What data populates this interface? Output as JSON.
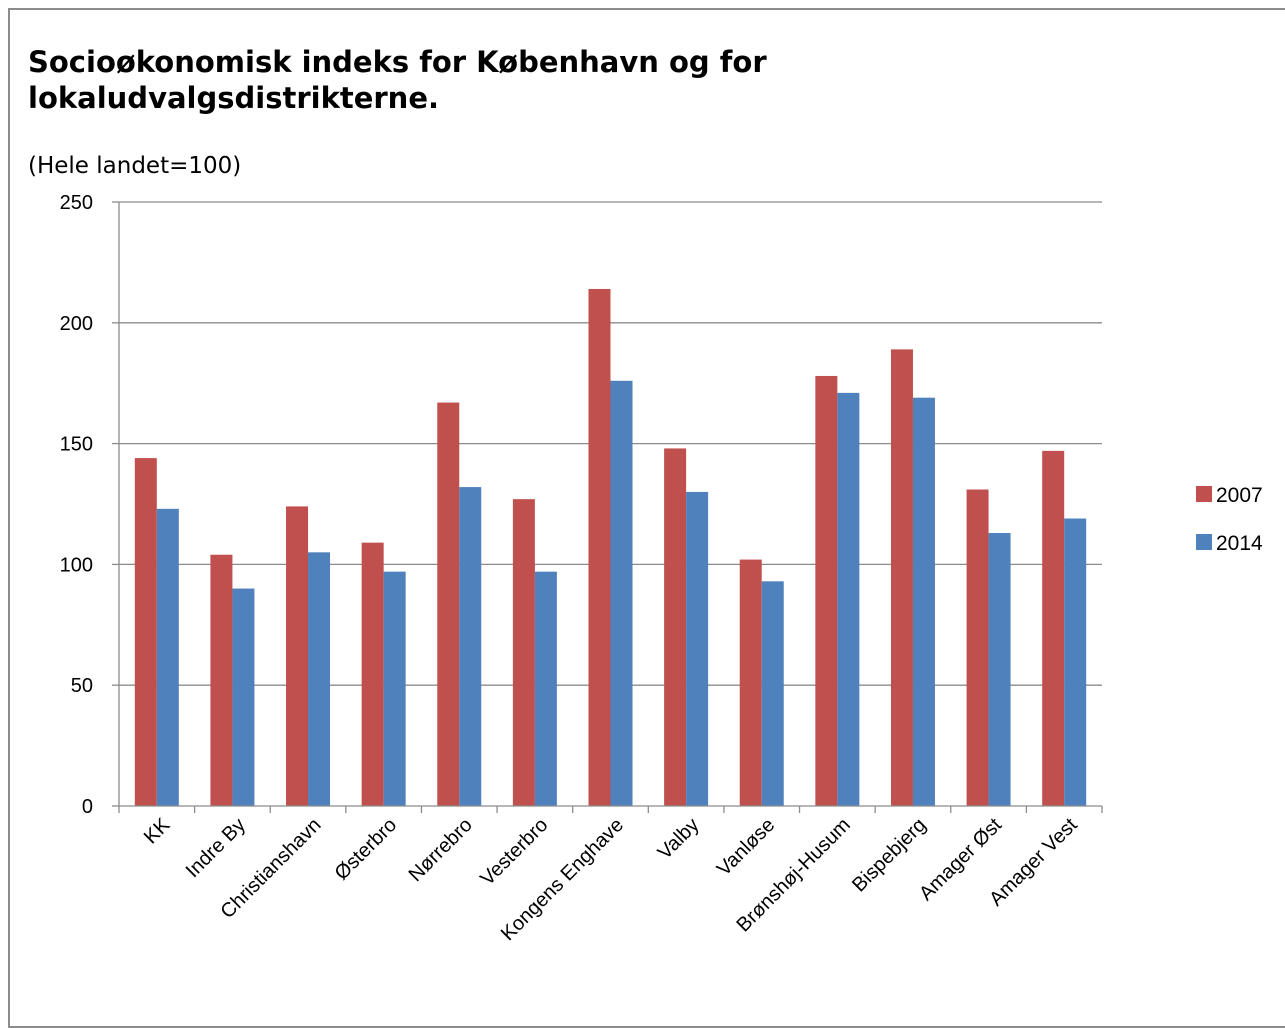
{
  "chart_data": {
    "type": "bar",
    "title": "Socioøkonomisk indeks for København og for lokaludvalgsdistrikterne.",
    "subtitle": "(Hele landet=100)",
    "categories": [
      "KK",
      "Indre By",
      "Christianshavn",
      "Østerbro",
      "Nørrebro",
      "Vesterbro",
      "Kongens Enghave",
      "Valby",
      "Vanløse",
      "Brønshøj-Husum",
      "Bispebjerg",
      "Amager Øst",
      "Amager Vest"
    ],
    "series": [
      {
        "name": "2007",
        "color": "#c0504d",
        "values": [
          144,
          104,
          124,
          109,
          167,
          127,
          214,
          148,
          102,
          178,
          189,
          131,
          147
        ]
      },
      {
        "name": "2014",
        "color": "#4f81bd",
        "values": [
          123,
          90,
          105,
          97,
          132,
          97,
          176,
          130,
          93,
          171,
          169,
          113,
          119
        ]
      }
    ],
    "ylim": [
      0,
      250
    ],
    "yticks": [
      0,
      50,
      100,
      150,
      200,
      250
    ],
    "grid": true,
    "legend_position": "right",
    "xlabel": "",
    "ylabel": ""
  }
}
